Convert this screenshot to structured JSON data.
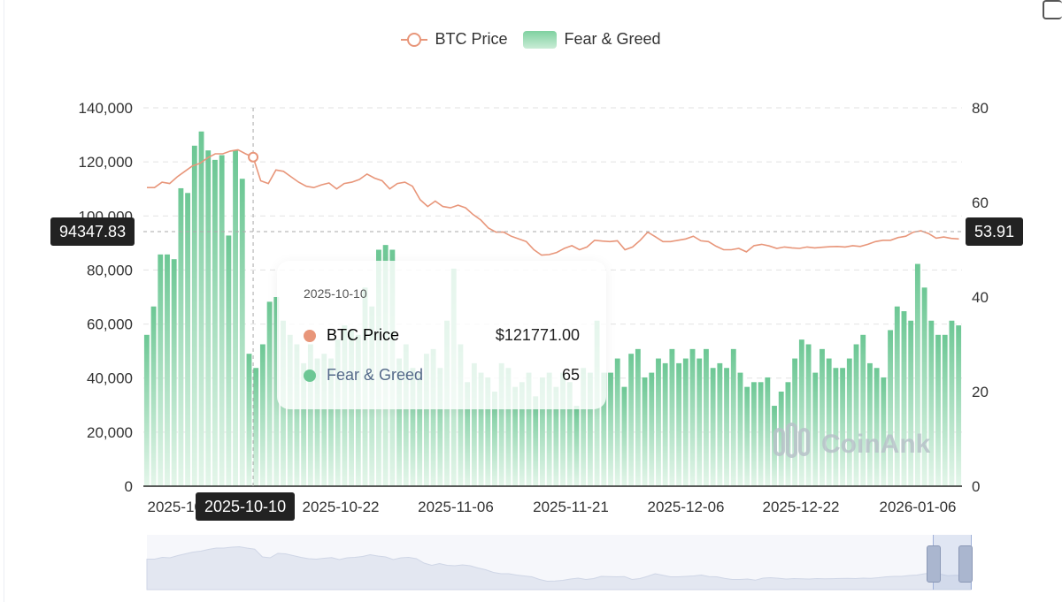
{
  "legend": {
    "btc_label": "BTC Price",
    "fg_label": "Fear & Greed"
  },
  "tooltip": {
    "date": "2025-10-10",
    "btc_label": "BTC Price",
    "btc_value": "$121771.00",
    "fg_label": "Fear & Greed",
    "fg_value": "65"
  },
  "crosshair": {
    "left_value": "94347.83",
    "right_value": "53.91",
    "x_value": "2025-10-10"
  },
  "watermark": "CoinAnk",
  "colors": {
    "btc_line": "#e8967a",
    "fg_bar_top": "#6cc794",
    "fg_bar_bottom": "#e4f6ea",
    "tooltip_fg_label": "#556a8a",
    "grid": "#e2e2e2"
  },
  "chart_data": {
    "type": "bar",
    "series_types": {
      "Fear & Greed": "bar",
      "BTC Price": "line"
    },
    "y_left": {
      "min": 0,
      "max": 140000,
      "ticks": [
        "0",
        "20,000",
        "40,000",
        "60,000",
        "80,000",
        "100,000",
        "120,000",
        "140,000"
      ]
    },
    "y_right": {
      "min": 0,
      "max": 80,
      "ticks": [
        "0",
        "20",
        "40",
        "60",
        "80"
      ]
    },
    "x_tick_labels": [
      "2025-10-06",
      "2025-10-22",
      "2025-11-06",
      "2025-11-21",
      "2025-12-06",
      "2025-12-22",
      "2026-01-06"
    ],
    "grid": true,
    "legend_position": "top-center",
    "series": [
      {
        "name": "Fear & Greed",
        "axis": "right",
        "values": [
          32,
          38,
          49,
          49,
          48,
          63,
          62,
          72,
          75,
          71,
          69,
          70,
          53,
          71,
          65,
          28,
          25,
          30,
          39,
          40,
          35,
          32,
          30,
          26,
          30,
          27,
          28,
          27,
          31,
          34,
          33,
          32,
          42,
          38,
          50,
          51,
          50,
          27,
          30,
          25,
          24,
          28,
          29,
          25,
          35,
          46,
          30,
          22,
          26,
          24,
          23,
          20,
          26,
          25,
          21,
          22,
          24,
          19,
          23,
          24,
          21,
          24,
          22,
          17,
          25,
          24,
          35,
          24,
          24,
          27,
          21,
          28,
          29,
          23,
          24,
          27,
          26,
          29,
          26,
          27,
          29,
          27,
          29,
          25,
          26,
          25,
          29,
          24,
          21,
          22,
          22,
          23,
          17,
          20,
          22,
          27,
          31,
          30,
          24,
          29,
          27,
          25,
          25,
          27,
          30,
          32,
          26,
          25,
          23,
          33,
          38,
          37,
          35,
          47,
          42,
          35,
          32,
          32,
          35,
          34
        ]
      },
      {
        "name": "BTC Price",
        "axis": "left",
        "values": [
          110500,
          110500,
          112500,
          112000,
          114500,
          116500,
          118500,
          119500,
          121500,
          123000,
          123000,
          124000,
          124500,
          123000,
          121771,
          113000,
          112000,
          117000,
          116500,
          114500,
          112500,
          111000,
          110500,
          111500,
          112200,
          110000,
          112000,
          112500,
          113500,
          115500,
          114000,
          113000,
          110000,
          112000,
          112500,
          111000,
          106000,
          103500,
          105500,
          103500,
          103000,
          104000,
          103000,
          100500,
          98500,
          95500,
          94000,
          94000,
          92500,
          91500,
          90500,
          87500,
          85500,
          85700,
          86500,
          88000,
          89000,
          87500,
          88500,
          91000,
          90700,
          90500,
          90800,
          87500,
          88500,
          91000,
          94000,
          92300,
          90500,
          90500,
          91000,
          91500,
          92500,
          90800,
          90500,
          88800,
          87500,
          87500,
          88000,
          86700,
          89000,
          89500,
          88900,
          88000,
          88500,
          88200,
          88000,
          88500,
          88200,
          88400,
          88600,
          88700,
          88500,
          89000,
          88700,
          89500,
          90500,
          91000,
          91000,
          92000,
          92500,
          94000,
          94500,
          93500,
          91800,
          92200,
          91700,
          91500
        ]
      }
    ]
  }
}
